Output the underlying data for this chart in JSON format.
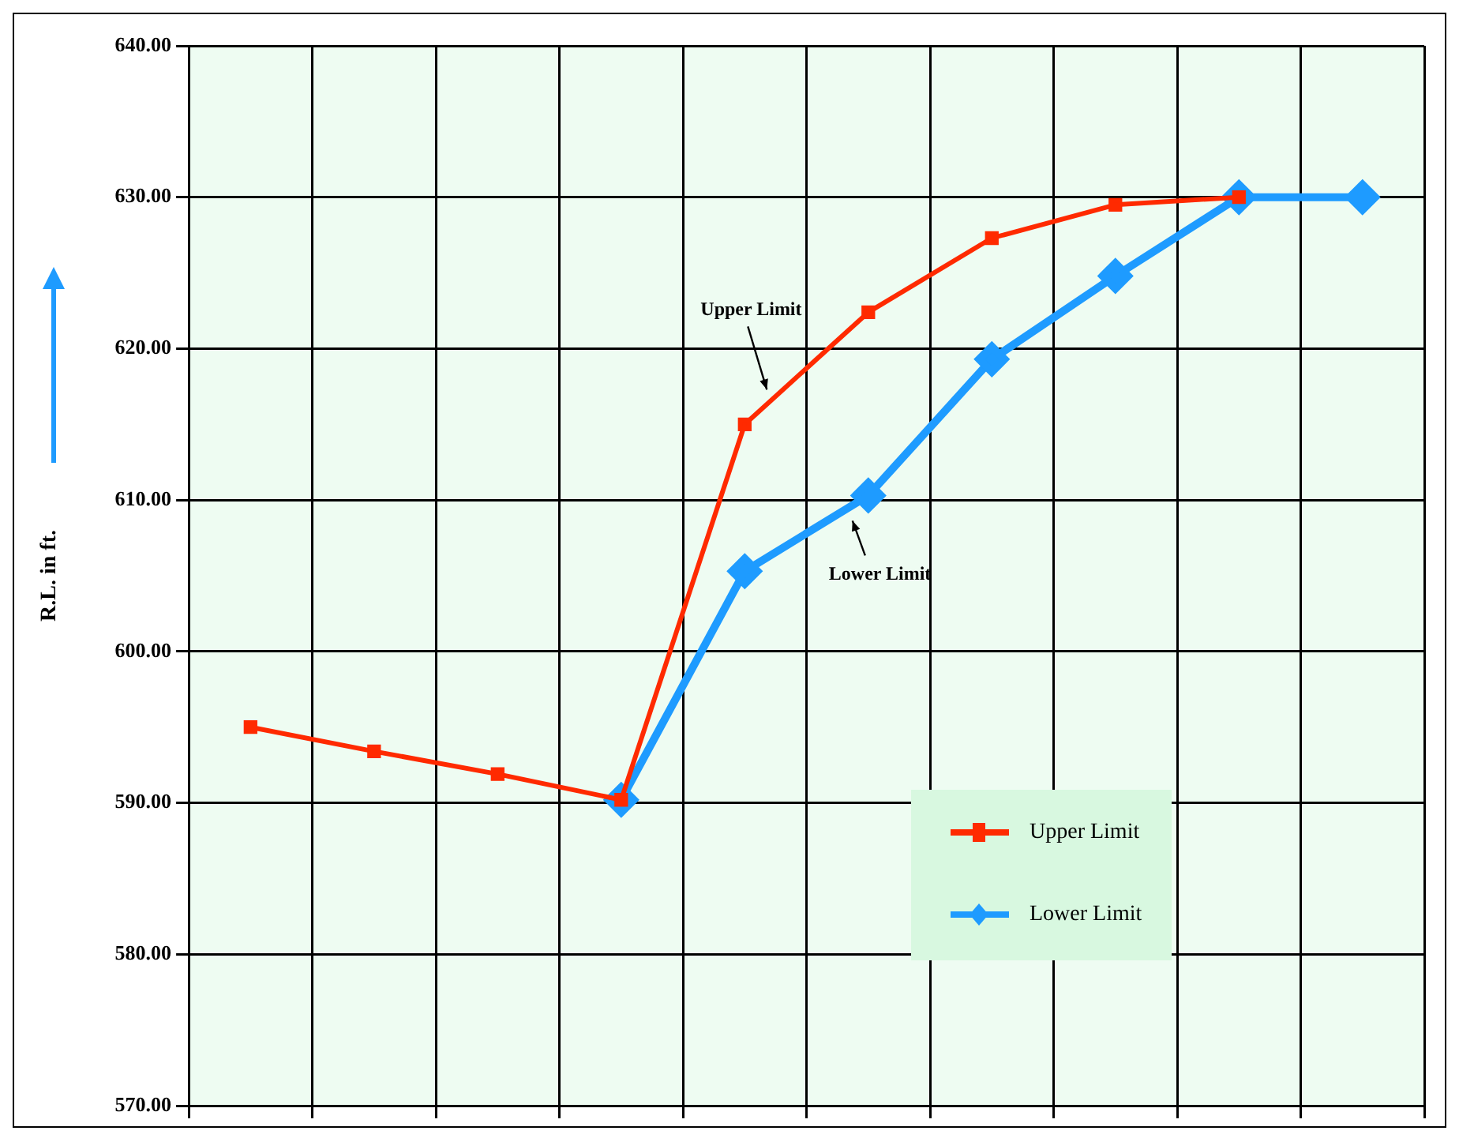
{
  "chart_data": {
    "type": "line",
    "ylabel": "R.L. in ft.",
    "categories": [
      null,
      null,
      null,
      null,
      null,
      null,
      null,
      null,
      null,
      null
    ],
    "series": [
      {
        "name": "Upper Limit",
        "color": "#ff2a00",
        "marker": "square",
        "values": [
          595.0,
          593.4,
          591.9,
          590.2,
          615.0,
          622.4,
          627.3,
          629.5,
          630.0,
          null
        ]
      },
      {
        "name": "Lower Limit",
        "color": "#1e9bff",
        "marker": "diamond",
        "values": [
          null,
          null,
          null,
          590.2,
          605.3,
          610.3,
          619.3,
          624.8,
          630.0,
          630.0
        ]
      }
    ],
    "ylim": [
      570,
      640
    ],
    "yticks": [
      {
        "value": 570,
        "label": "570.00"
      },
      {
        "value": 580,
        "label": "580.00"
      },
      {
        "value": 590,
        "label": "590.00"
      },
      {
        "value": 600,
        "label": "600.00"
      },
      {
        "value": 610,
        "label": "610.00"
      },
      {
        "value": 620,
        "label": "620.00"
      },
      {
        "value": 630,
        "label": "630.00"
      },
      {
        "value": 640,
        "label": "640.00"
      }
    ],
    "grid": true,
    "legend": "bottom right",
    "tick_labels": "y",
    "annotations": [
      "Upper Limit",
      "Lower Limit"
    ]
  }
}
